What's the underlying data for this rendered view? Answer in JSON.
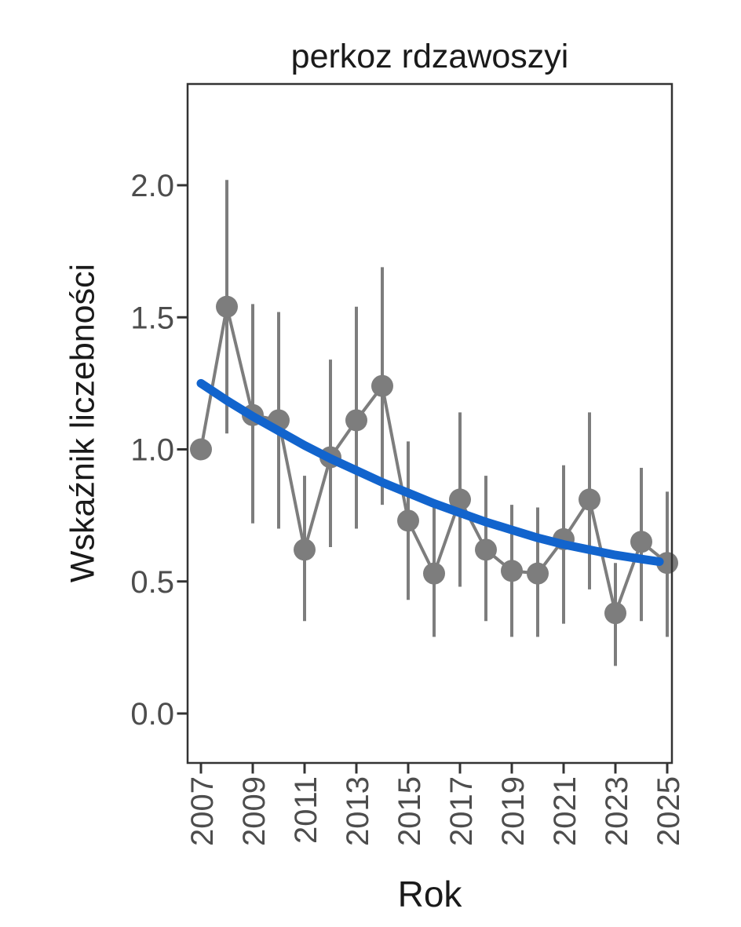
{
  "title": "perkoz rdzawoszyi",
  "colors": {
    "point_gray": "#7d7d7d",
    "error_bar_gray": "#7d7d7d",
    "trend_blue": "#1264cd",
    "panel_border": "#333333",
    "tick_mark": "#333333",
    "tick_text": "#4d4d4d",
    "label_text": "#1a1a1a",
    "background": "#ffffff"
  },
  "chart_data": {
    "type": "line",
    "title": "perkoz rdzawoszyi",
    "xlabel": "Rok",
    "ylabel": "Wskaźnik liczebności",
    "xlim": [
      2006.5,
      2025.2
    ],
    "ylim": [
      -0.19,
      2.38
    ],
    "grid": false,
    "legend": false,
    "x_tick_labels": [
      "2007",
      "2009",
      "2011",
      "2013",
      "2015",
      "2017",
      "2019",
      "2021",
      "2023",
      "2025"
    ],
    "x_tick_values": [
      2007,
      2009,
      2011,
      2013,
      2015,
      2017,
      2019,
      2021,
      2023,
      2025
    ],
    "y_tick_labels": [
      "0.0",
      "0.5",
      "1.0",
      "1.5",
      "2.0"
    ],
    "y_tick_values": [
      0.0,
      0.5,
      1.0,
      1.5,
      2.0
    ],
    "points": [
      {
        "year": 2007,
        "value": 1.0,
        "lo": null,
        "hi": null
      },
      {
        "year": 2008,
        "value": 1.54,
        "lo": 1.06,
        "hi": 2.02
      },
      {
        "year": 2009,
        "value": 1.13,
        "lo": 0.72,
        "hi": 1.55
      },
      {
        "year": 2010,
        "value": 1.11,
        "lo": 0.7,
        "hi": 1.52
      },
      {
        "year": 2011,
        "value": 0.62,
        "lo": 0.35,
        "hi": 0.9
      },
      {
        "year": 2012,
        "value": 0.97,
        "lo": 0.63,
        "hi": 1.34
      },
      {
        "year": 2013,
        "value": 1.11,
        "lo": 0.7,
        "hi": 1.54
      },
      {
        "year": 2014,
        "value": 1.24,
        "lo": 0.79,
        "hi": 1.69
      },
      {
        "year": 2015,
        "value": 0.73,
        "lo": 0.43,
        "hi": 1.03
      },
      {
        "year": 2016,
        "value": 0.53,
        "lo": 0.29,
        "hi": 0.78
      },
      {
        "year": 2017,
        "value": 0.81,
        "lo": 0.48,
        "hi": 1.14
      },
      {
        "year": 2018,
        "value": 0.62,
        "lo": 0.35,
        "hi": 0.9
      },
      {
        "year": 2019,
        "value": 0.54,
        "lo": 0.29,
        "hi": 0.79
      },
      {
        "year": 2020,
        "value": 0.53,
        "lo": 0.29,
        "hi": 0.78
      },
      {
        "year": 2021,
        "value": 0.66,
        "lo": 0.34,
        "hi": 0.94
      },
      {
        "year": 2022,
        "value": 0.81,
        "lo": 0.47,
        "hi": 1.14
      },
      {
        "year": 2023,
        "value": 0.38,
        "lo": 0.18,
        "hi": 0.57
      },
      {
        "year": 2024,
        "value": 0.65,
        "lo": 0.35,
        "hi": 0.93
      },
      {
        "year": 2025,
        "value": 0.57,
        "lo": 0.29,
        "hi": 0.84
      }
    ],
    "trend": {
      "name": "smooth-trend",
      "x": [
        2007,
        2008,
        2009,
        2010,
        2011,
        2012,
        2013,
        2014,
        2015,
        2016,
        2017,
        2018,
        2019,
        2020,
        2021,
        2022,
        2023,
        2024,
        2024.7
      ],
      "y": [
        1.25,
        1.185,
        1.125,
        1.07,
        1.015,
        0.965,
        0.92,
        0.875,
        0.835,
        0.795,
        0.76,
        0.725,
        0.695,
        0.665,
        0.64,
        0.62,
        0.6,
        0.585,
        0.575
      ]
    }
  }
}
